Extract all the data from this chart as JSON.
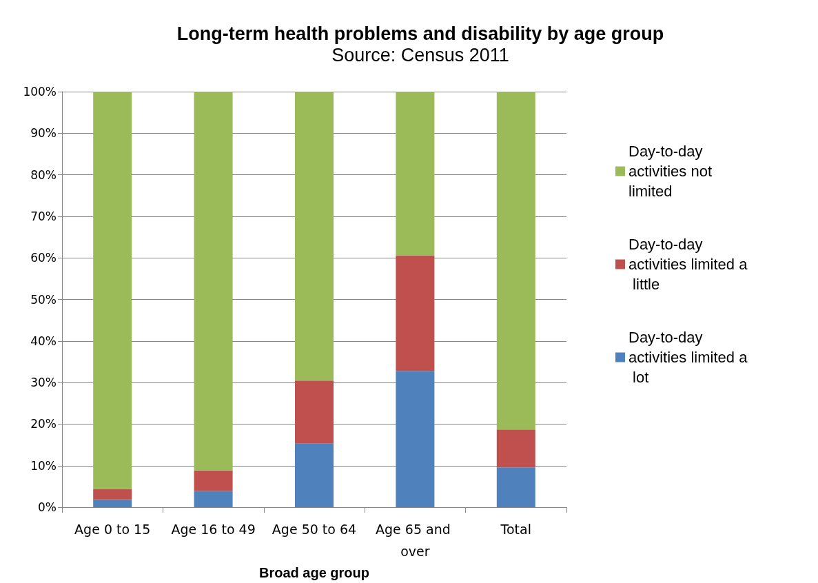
{
  "chart_data": {
    "type": "bar",
    "title": "Long-term health problems and disability by age group",
    "subtitle": "Source: Census 2011",
    "xlabel": "Broad age group",
    "categories": [
      "Age 0 to 15",
      "Age 16 to 49",
      "Age 50 to 64",
      "Age 65 and over",
      "Total"
    ],
    "stacked": true,
    "series": [
      {
        "name": "Day-to-day activities limited a lot",
        "color": "#4f81bd",
        "values": [
          1.9,
          3.9,
          15.3,
          32.8,
          9.6
        ]
      },
      {
        "name": "Day-to-day activities limited a little",
        "color": "#c0504d",
        "values": [
          2.5,
          5.0,
          15.2,
          27.8,
          9.1
        ]
      },
      {
        "name": "Day-to-day activities not limited",
        "color": "#9bbb59",
        "values": [
          95.6,
          91.1,
          69.5,
          39.4,
          81.3
        ]
      }
    ],
    "ylim": [
      0,
      100
    ],
    "yticks": [
      {
        "value": 0,
        "label": "0%"
      },
      {
        "value": 10,
        "label": "10%"
      },
      {
        "value": 20,
        "label": "20%"
      },
      {
        "value": 30,
        "label": "30%"
      },
      {
        "value": 40,
        "label": "40%"
      },
      {
        "value": 50,
        "label": "50%"
      },
      {
        "value": 60,
        "label": "60%"
      },
      {
        "value": 70,
        "label": "70%"
      },
      {
        "value": 80,
        "label": "80%"
      },
      {
        "value": 90,
        "label": "90%"
      },
      {
        "value": 100,
        "label": "100%"
      }
    ],
    "grid": "y",
    "legend": "right"
  }
}
